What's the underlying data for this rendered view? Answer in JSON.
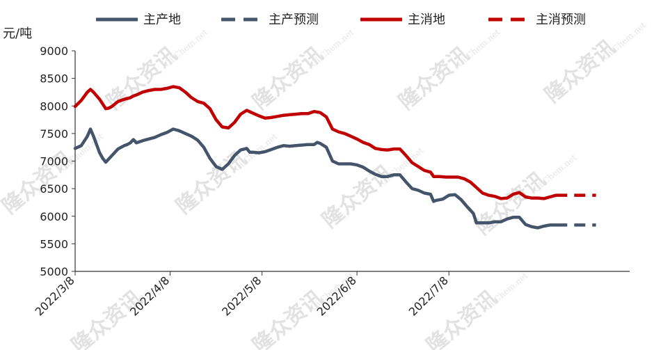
{
  "watermark": {
    "brand": "隆众资讯",
    "site": "OilChem.net"
  },
  "chart_data": {
    "type": "line",
    "ylabel": "元/吨",
    "ylim": [
      5000,
      9000
    ],
    "yticks": [
      5000,
      5500,
      6000,
      6500,
      7000,
      7500,
      8000,
      8500,
      9000
    ],
    "xticks": [
      "2022/3/8",
      "2022/4/8",
      "2022/5/8",
      "2022/6/8",
      "2022/7/8"
    ],
    "x_range_days": [
      0,
      142
    ],
    "legend_position": "top",
    "grid": false,
    "series": [
      {
        "name": "主产地",
        "style": "solid",
        "color": "#44546a",
        "points": [
          [
            0,
            7230
          ],
          [
            2,
            7280
          ],
          [
            4,
            7450
          ],
          [
            5,
            7580
          ],
          [
            6,
            7450
          ],
          [
            8,
            7150
          ],
          [
            9,
            7050
          ],
          [
            10,
            6980
          ],
          [
            12,
            7100
          ],
          [
            14,
            7220
          ],
          [
            16,
            7280
          ],
          [
            17,
            7300
          ],
          [
            18,
            7330
          ],
          [
            19,
            7390
          ],
          [
            20,
            7330
          ],
          [
            22,
            7370
          ],
          [
            24,
            7400
          ],
          [
            26,
            7430
          ],
          [
            28,
            7480
          ],
          [
            30,
            7520
          ],
          [
            32,
            7580
          ],
          [
            34,
            7550
          ],
          [
            36,
            7500
          ],
          [
            38,
            7450
          ],
          [
            40,
            7380
          ],
          [
            42,
            7250
          ],
          [
            44,
            7050
          ],
          [
            46,
            6900
          ],
          [
            48,
            6850
          ],
          [
            50,
            6950
          ],
          [
            52,
            7100
          ],
          [
            54,
            7200
          ],
          [
            56,
            7230
          ],
          [
            57,
            7160
          ],
          [
            58,
            7160
          ],
          [
            60,
            7150
          ],
          [
            62,
            7170
          ],
          [
            64,
            7210
          ],
          [
            66,
            7250
          ],
          [
            68,
            7280
          ],
          [
            70,
            7270
          ],
          [
            72,
            7280
          ],
          [
            74,
            7290
          ],
          [
            76,
            7300
          ],
          [
            78,
            7300
          ],
          [
            79,
            7340
          ],
          [
            80,
            7320
          ],
          [
            82,
            7250
          ],
          [
            84,
            7000
          ],
          [
            86,
            6950
          ],
          [
            88,
            6950
          ],
          [
            90,
            6950
          ],
          [
            92,
            6930
          ],
          [
            94,
            6890
          ],
          [
            96,
            6820
          ],
          [
            98,
            6760
          ],
          [
            100,
            6720
          ],
          [
            102,
            6720
          ],
          [
            104,
            6750
          ],
          [
            106,
            6750
          ],
          [
            108,
            6620
          ],
          [
            110,
            6500
          ],
          [
            112,
            6470
          ],
          [
            114,
            6420
          ],
          [
            116,
            6400
          ],
          [
            117,
            6270
          ],
          [
            118,
            6290
          ],
          [
            120,
            6310
          ],
          [
            122,
            6380
          ],
          [
            124,
            6390
          ],
          [
            126,
            6300
          ],
          [
            128,
            6170
          ],
          [
            130,
            6050
          ],
          [
            131,
            5880
          ],
          [
            133,
            5880
          ],
          [
            135,
            5880
          ],
          [
            137,
            5900
          ],
          [
            139,
            5900
          ],
          [
            141,
            5950
          ],
          [
            143,
            5980
          ],
          [
            145,
            5980
          ],
          [
            147,
            5850
          ],
          [
            149,
            5810
          ],
          [
            151,
            5790
          ],
          [
            153,
            5820
          ],
          [
            155,
            5840
          ],
          [
            157,
            5840
          ]
        ]
      },
      {
        "name": "主产预测",
        "style": "dashed",
        "color": "#44546a",
        "points": [
          [
            157,
            5840
          ],
          [
            170,
            5840
          ]
        ]
      },
      {
        "name": "主消地",
        "style": "solid",
        "color": "#c00000",
        "points": [
          [
            0,
            7990
          ],
          [
            2,
            8100
          ],
          [
            4,
            8250
          ],
          [
            5,
            8300
          ],
          [
            6,
            8250
          ],
          [
            8,
            8120
          ],
          [
            10,
            7950
          ],
          [
            11,
            7960
          ],
          [
            12,
            7990
          ],
          [
            14,
            8080
          ],
          [
            16,
            8120
          ],
          [
            18,
            8150
          ],
          [
            19,
            8180
          ],
          [
            20,
            8200
          ],
          [
            22,
            8250
          ],
          [
            24,
            8280
          ],
          [
            26,
            8300
          ],
          [
            28,
            8300
          ],
          [
            30,
            8320
          ],
          [
            32,
            8350
          ],
          [
            34,
            8330
          ],
          [
            36,
            8250
          ],
          [
            38,
            8150
          ],
          [
            40,
            8080
          ],
          [
            42,
            8050
          ],
          [
            44,
            7950
          ],
          [
            46,
            7750
          ],
          [
            48,
            7620
          ],
          [
            50,
            7600
          ],
          [
            52,
            7700
          ],
          [
            54,
            7850
          ],
          [
            56,
            7920
          ],
          [
            58,
            7870
          ],
          [
            60,
            7820
          ],
          [
            62,
            7780
          ],
          [
            64,
            7790
          ],
          [
            66,
            7810
          ],
          [
            68,
            7830
          ],
          [
            70,
            7840
          ],
          [
            72,
            7850
          ],
          [
            74,
            7860
          ],
          [
            76,
            7860
          ],
          [
            78,
            7900
          ],
          [
            80,
            7880
          ],
          [
            82,
            7800
          ],
          [
            84,
            7580
          ],
          [
            86,
            7530
          ],
          [
            88,
            7500
          ],
          [
            90,
            7450
          ],
          [
            92,
            7400
          ],
          [
            94,
            7340
          ],
          [
            96,
            7300
          ],
          [
            98,
            7230
          ],
          [
            100,
            7210
          ],
          [
            102,
            7200
          ],
          [
            104,
            7220
          ],
          [
            106,
            7220
          ],
          [
            108,
            7100
          ],
          [
            110,
            6970
          ],
          [
            112,
            6900
          ],
          [
            114,
            6830
          ],
          [
            116,
            6800
          ],
          [
            117,
            6720
          ],
          [
            119,
            6720
          ],
          [
            121,
            6710
          ],
          [
            123,
            6710
          ],
          [
            125,
            6710
          ],
          [
            127,
            6680
          ],
          [
            129,
            6620
          ],
          [
            131,
            6520
          ],
          [
            133,
            6420
          ],
          [
            135,
            6380
          ],
          [
            137,
            6360
          ],
          [
            139,
            6320
          ],
          [
            141,
            6330
          ],
          [
            143,
            6400
          ],
          [
            145,
            6430
          ],
          [
            147,
            6350
          ],
          [
            149,
            6330
          ],
          [
            151,
            6330
          ],
          [
            153,
            6320
          ],
          [
            155,
            6350
          ],
          [
            157,
            6380
          ]
        ]
      },
      {
        "name": "主消预测",
        "style": "dashed",
        "color": "#c00000",
        "points": [
          [
            157,
            6380
          ],
          [
            170,
            6380
          ]
        ]
      }
    ]
  }
}
